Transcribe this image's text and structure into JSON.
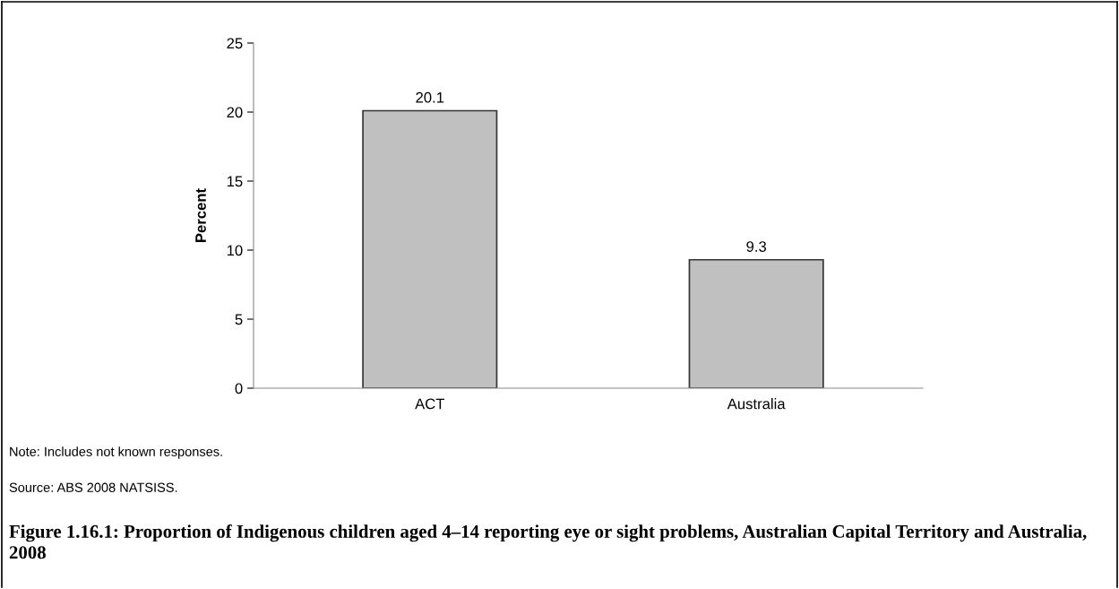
{
  "chart_data": {
    "type": "bar",
    "title": "Figure 1.16.1: Proportion of Indigenous children aged 4–14 reporting eye or sight problems, Australian Capital Territory and Australia, 2008",
    "ylabel": "Percent",
    "categories": [
      "ACT",
      "Australia"
    ],
    "values": [
      20.1,
      9.3
    ],
    "color": "#c0c0c0",
    "ylim": [
      0,
      25
    ],
    "yticks": [
      0,
      5,
      10,
      15,
      20,
      25
    ],
    "grid": false,
    "data_labels": true,
    "annotations": [
      "Note: Includes not known responses.",
      "Source: ABS 2008 NATSISS."
    ]
  }
}
